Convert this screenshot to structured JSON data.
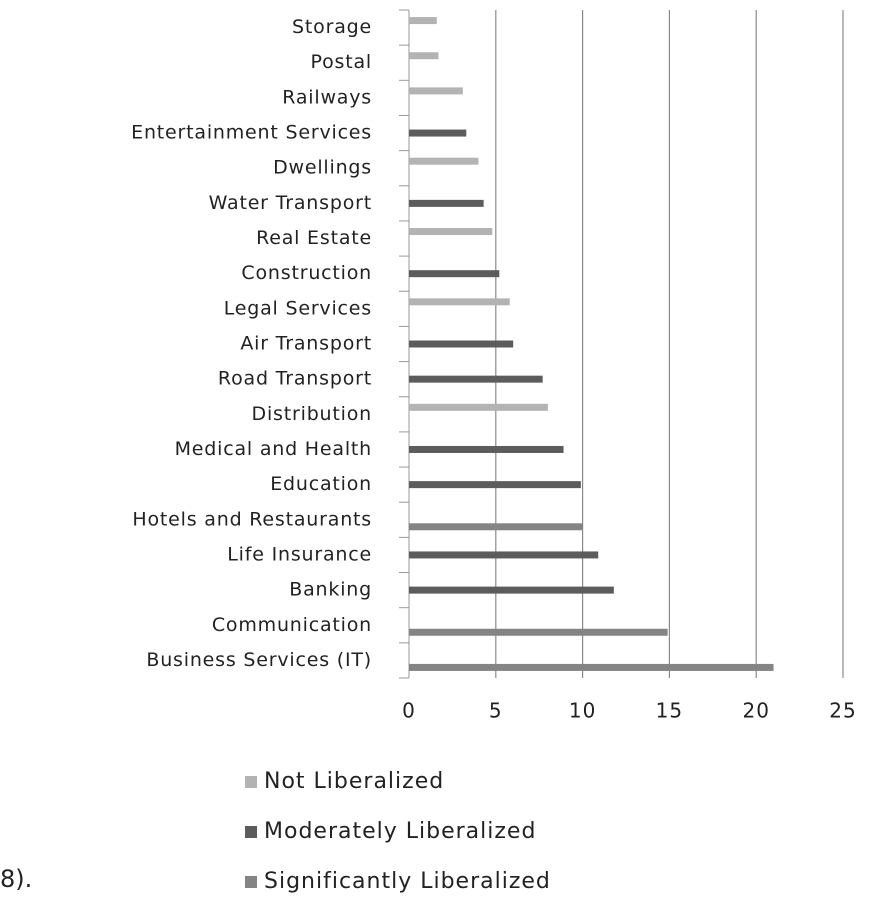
{
  "chart_data": {
    "type": "bar",
    "orientation": "horizontal",
    "categories": [
      "Storage",
      "Postal",
      "Railways",
      "Entertainment Services",
      "Dwellings",
      "Water Transport",
      "Real Estate",
      "Construction",
      "Legal Services",
      "Air Transport",
      "Road Transport",
      "Distribution",
      "Medical and Health",
      "Education",
      "Hotels and Restaurants",
      "Life Insurance",
      "Banking",
      "Communication",
      "Business Services (IT)"
    ],
    "series": [
      {
        "name": "Not Liberalized",
        "color": "#b3b3b3",
        "values": [
          1.6,
          1.7,
          3.1,
          null,
          4.0,
          null,
          4.8,
          null,
          5.8,
          null,
          null,
          8.0,
          null,
          null,
          null,
          null,
          null,
          null,
          null
        ]
      },
      {
        "name": "Moderately Liberalized",
        "color": "#5c5c5c",
        "values": [
          null,
          null,
          null,
          3.3,
          null,
          4.3,
          null,
          5.2,
          null,
          6.0,
          7.7,
          null,
          8.9,
          9.9,
          null,
          10.9,
          11.8,
          null,
          null
        ]
      },
      {
        "name": "Significantly Liberalized",
        "color": "#848484",
        "values": [
          null,
          null,
          null,
          null,
          null,
          null,
          null,
          null,
          null,
          null,
          null,
          null,
          null,
          null,
          10.0,
          null,
          null,
          14.9,
          21.0
        ]
      }
    ],
    "xlim": [
      0,
      25
    ],
    "xticks": [
      0,
      5,
      10,
      15,
      20,
      25
    ],
    "grid": true,
    "legend": "bottom"
  },
  "note": "8)."
}
